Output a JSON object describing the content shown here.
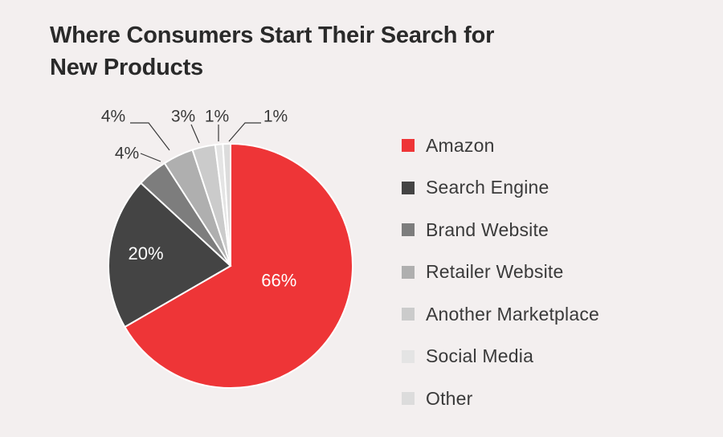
{
  "title_line1": "Where Consumers Start Their Search for",
  "title_line2": "New Products",
  "chart_data": {
    "type": "pie",
    "title": "Where Consumers Start Their Search for New Products",
    "categories": [
      "Amazon",
      "Search Engine",
      "Brand Website",
      "Retailer Website",
      "Another Marketplace",
      "Social Media",
      "Other"
    ],
    "values": [
      66,
      20,
      4,
      4,
      3,
      1,
      1
    ],
    "value_labels": [
      "66%",
      "20%",
      "4%",
      "4%",
      "3%",
      "1%",
      "1%"
    ],
    "colors": [
      "#ee3537",
      "#444444",
      "#7d7d7d",
      "#afafaf",
      "#cbcbcb",
      "#e4e4e4",
      "#dcdcdc"
    ],
    "legend_position": "right"
  }
}
